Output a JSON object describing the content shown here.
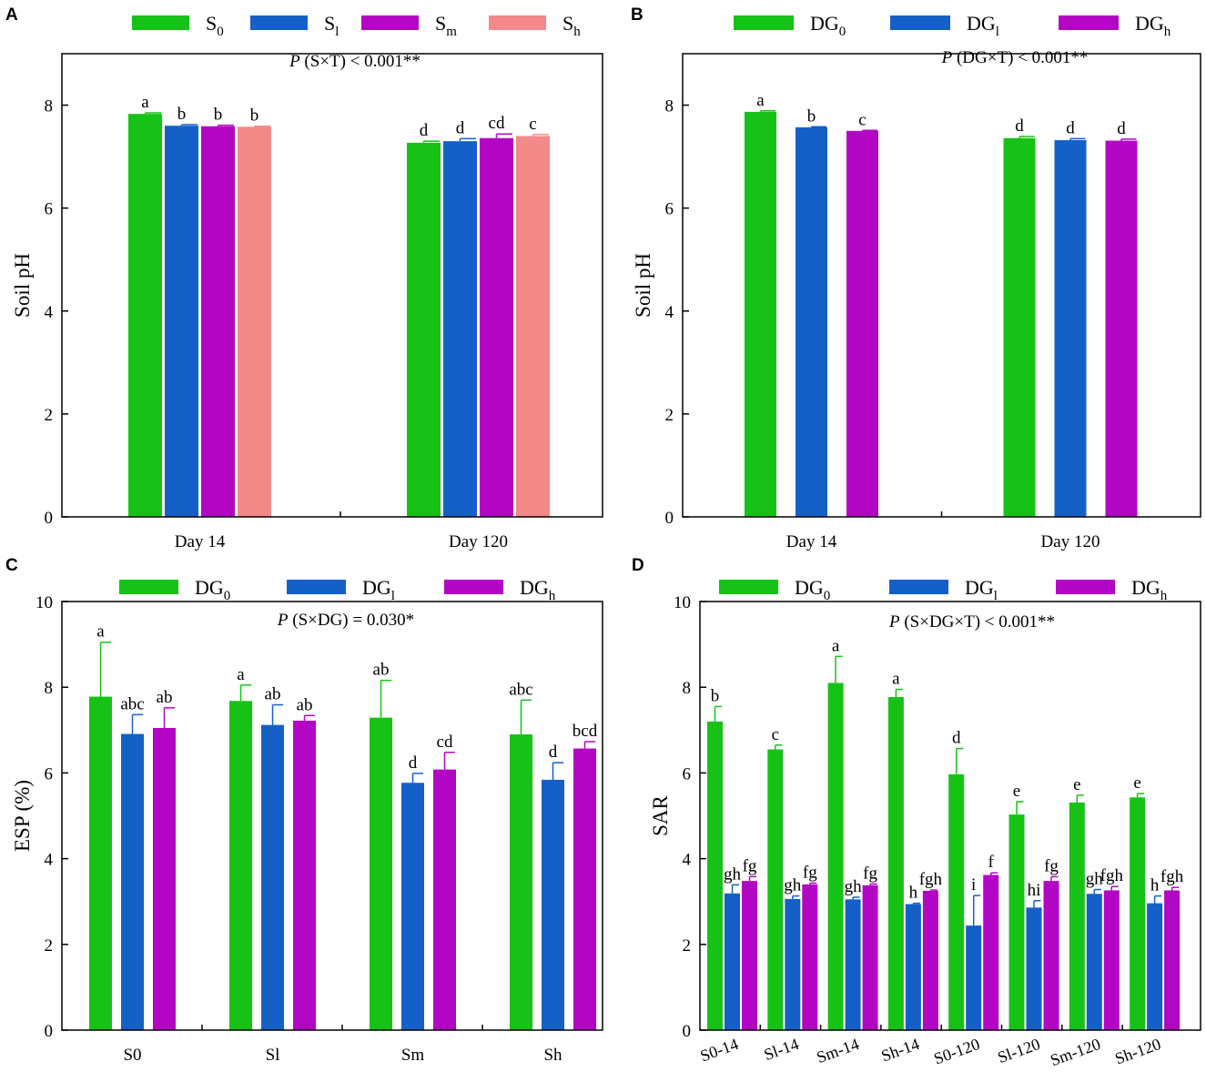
{
  "figure": {
    "panels": [
      "A",
      "B",
      "C",
      "D"
    ]
  },
  "chart_data": [
    {
      "id": "A",
      "type": "bar",
      "title": "",
      "xlabel": "",
      "ylabel": "Soil pH",
      "ylim": [
        0,
        9
      ],
      "yticks": [
        0,
        2,
        4,
        6,
        8
      ],
      "categories": [
        "Day 14",
        "Day 120"
      ],
      "annotation": "P (S×T) < 0.001**",
      "legend": [
        {
          "base": "S",
          "sub": "0"
        },
        {
          "base": "S",
          "sub": "l"
        },
        {
          "base": "S",
          "sub": "m"
        },
        {
          "base": "S",
          "sub": "h"
        }
      ],
      "series": [
        {
          "name": "S0",
          "color": "#17c217",
          "values": [
            7.83,
            7.27
          ],
          "errors": [
            0.02,
            0.03
          ],
          "letters": [
            "a",
            "d"
          ]
        },
        {
          "name": "Sl",
          "color": "#1560c7",
          "values": [
            7.6,
            7.3
          ],
          "errors": [
            0.02,
            0.05
          ],
          "letters": [
            "b",
            "d"
          ]
        },
        {
          "name": "Sm",
          "color": "#b306c4",
          "values": [
            7.59,
            7.36
          ],
          "errors": [
            0.02,
            0.08
          ],
          "letters": [
            "b",
            "cd"
          ]
        },
        {
          "name": "Sh",
          "color": "#f58888",
          "values": [
            7.58,
            7.4
          ],
          "errors": [
            0.01,
            0.03
          ],
          "letters": [
            "b",
            "c"
          ]
        }
      ]
    },
    {
      "id": "B",
      "type": "bar",
      "title": "",
      "xlabel": "",
      "ylabel": "Soil pH",
      "ylim": [
        0,
        9
      ],
      "yticks": [
        0,
        2,
        4,
        6,
        8
      ],
      "categories": [
        "Day 14",
        "Day 120"
      ],
      "annotation": "P (DG×T) < 0.001**",
      "legend": [
        {
          "base": "DG",
          "sub": "0"
        },
        {
          "base": "DG",
          "sub": "l"
        },
        {
          "base": "DG",
          "sub": "h"
        }
      ],
      "series": [
        {
          "name": "DG0",
          "color": "#17c217",
          "values": [
            7.87,
            7.36
          ],
          "errors": [
            0.02,
            0.03
          ],
          "letters": [
            "a",
            "d"
          ]
        },
        {
          "name": "DGl",
          "color": "#1560c7",
          "values": [
            7.57,
            7.32
          ],
          "errors": [
            0.01,
            0.03
          ],
          "letters": [
            "b",
            "d"
          ]
        },
        {
          "name": "DGh",
          "color": "#b306c4",
          "values": [
            7.5,
            7.31
          ],
          "errors": [
            0.01,
            0.03
          ],
          "letters": [
            "c",
            "d"
          ]
        }
      ]
    },
    {
      "id": "C",
      "type": "bar",
      "title": "",
      "xlabel": "",
      "ylabel": "ESP (%)",
      "ylim": [
        0,
        10
      ],
      "yticks": [
        0,
        2,
        4,
        6,
        8,
        10
      ],
      "categories": [
        "S0",
        "Sl",
        "Sm",
        "Sh"
      ],
      "annotation": "P (S×DG) = 0.030*",
      "legend": [
        {
          "base": "DG",
          "sub": "0"
        },
        {
          "base": "DG",
          "sub": "l"
        },
        {
          "base": "DG",
          "sub": "h"
        }
      ],
      "series": [
        {
          "name": "DG0",
          "color": "#17c217",
          "values": [
            7.78,
            7.68,
            7.29,
            6.9
          ],
          "errors": [
            1.27,
            0.37,
            0.87,
            0.8
          ],
          "letters": [
            "a",
            "a",
            "ab",
            "abc"
          ]
        },
        {
          "name": "DGl",
          "color": "#1560c7",
          "values": [
            6.91,
            7.12,
            5.77,
            5.84
          ],
          "errors": [
            0.45,
            0.47,
            0.22,
            0.4
          ],
          "letters": [
            "abc",
            "ab",
            "d",
            "d"
          ]
        },
        {
          "name": "DGh",
          "color": "#b306c4",
          "values": [
            7.05,
            7.22,
            6.08,
            6.57
          ],
          "errors": [
            0.47,
            0.12,
            0.4,
            0.16
          ],
          "letters": [
            "ab",
            "ab",
            "cd",
            "bcd"
          ]
        }
      ]
    },
    {
      "id": "D",
      "type": "bar",
      "title": "",
      "xlabel": "",
      "ylabel": "SAR",
      "ylim": [
        0,
        10
      ],
      "yticks": [
        0,
        2,
        4,
        6,
        8,
        10
      ],
      "categories": [
        "S0-14",
        "Sl-14",
        "Sm-14",
        "Sh-14",
        "S0-120",
        "Sl-120",
        "Sm-120",
        "Sh-120"
      ],
      "annotation": "P (S×DG×T) < 0.001**",
      "legend": [
        {
          "base": "DG",
          "sub": "0"
        },
        {
          "base": "DG",
          "sub": "l"
        },
        {
          "base": "DG",
          "sub": "h"
        }
      ],
      "series": [
        {
          "name": "DG0",
          "color": "#17c217",
          "values": [
            7.2,
            6.55,
            8.1,
            7.77,
            5.97,
            5.03,
            5.31,
            5.43
          ],
          "errors": [
            0.35,
            0.1,
            0.62,
            0.18,
            0.6,
            0.3,
            0.17,
            0.09
          ],
          "letters": [
            "b",
            "c",
            "a",
            "a",
            "d",
            "e",
            "e",
            "e"
          ]
        },
        {
          "name": "DGl",
          "color": "#1560c7",
          "values": [
            3.19,
            3.06,
            3.05,
            2.94,
            2.44,
            2.86,
            3.18,
            2.96
          ],
          "errors": [
            0.2,
            0.07,
            0.05,
            0.02,
            0.7,
            0.16,
            0.1,
            0.17
          ],
          "letters": [
            "gh",
            "gh",
            "gh",
            "h",
            "i",
            "hi",
            "gh",
            "h"
          ]
        },
        {
          "name": "DGh",
          "color": "#b306c4",
          "values": [
            3.48,
            3.4,
            3.38,
            3.25,
            3.62,
            3.48,
            3.26,
            3.26
          ],
          "errors": [
            0.1,
            0.03,
            0.03,
            0.02,
            0.05,
            0.1,
            0.09,
            0.07
          ],
          "letters": [
            "fg",
            "fg",
            "fg",
            "fgh",
            "f",
            "fg",
            "fgh",
            "fgh"
          ]
        }
      ]
    }
  ]
}
